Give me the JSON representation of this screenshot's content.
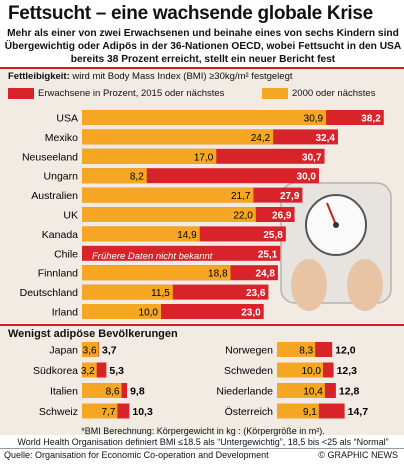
{
  "title": "Fettsucht – eine wachsende globale Krise",
  "subtitle": "Mehr als einer von zwei Erwachsenen und beinahe eines von sechs Kindern sind Übergewichtig oder Adipös in der 36-Nationen OECD, wobei Fettsucht in den USA bereits 38 Prozent erreicht, stellt ein neuer Bericht fest",
  "legend": {
    "heading_bold": "Fettleibigkeit:",
    "heading_rest": "wird mit Body Mass Index (BMI) ≥30kg/m² festgelegt",
    "series_2015_label": "Erwachsene in Prozent, 2015 oder nächstes",
    "series_2000_label": "2000 oder nächstes"
  },
  "colors": {
    "red": "#d8232a",
    "orange": "#f5a623",
    "accent_line": "#cc1f1f",
    "panel": "#f1ebe4"
  },
  "chart_data": [
    {
      "type": "bar",
      "title": "",
      "categories": [
        "USA",
        "Mexiko",
        "Neuseeland",
        "Ungarn",
        "Australien",
        "UK",
        "Kanada",
        "Chile",
        "Finnland",
        "Deutschland",
        "Irland"
      ],
      "series": [
        {
          "name": "Erwachsene in Prozent, 2015 oder nächstes",
          "values": [
            38.2,
            32.4,
            30.7,
            30.0,
            27.9,
            26.9,
            25.8,
            25.1,
            24.8,
            23.6,
            23.0
          ]
        },
        {
          "name": "2000 oder nächstes",
          "values": [
            30.9,
            24.2,
            17.0,
            8.2,
            21.7,
            22.0,
            14.9,
            null,
            18.8,
            11.5,
            10.0
          ]
        }
      ],
      "labels_2015": [
        "38,2",
        "32,4",
        "30,7",
        "30,0",
        "27,9",
        "26,9",
        "25,8",
        "25,1",
        "24,8",
        "23,6",
        "23,0"
      ],
      "labels_2000": [
        "30,9",
        "24,2",
        "17,0",
        "8,2",
        "21,7",
        "22,0",
        "14,9",
        "",
        "18,8",
        "11,5",
        "10,0"
      ],
      "annotation": "Frühere Daten nicht bekannt",
      "xlim": [
        0,
        40
      ]
    },
    {
      "type": "bar",
      "title": "Wenigst adipöse Bevölkerungen",
      "categories": [
        "Japan",
        "Südkorea",
        "Italien",
        "Schweiz",
        "Norwegen",
        "Schweden",
        "Niederlande",
        "Österreich"
      ],
      "series": [
        {
          "name": "Erwachsene in Prozent, 2015 oder nächstes",
          "values": [
            3.7,
            5.3,
            9.8,
            10.3,
            12.0,
            12.3,
            12.8,
            14.7
          ]
        },
        {
          "name": "2000 oder nächstes",
          "values": [
            3.6,
            3.2,
            8.6,
            7.7,
            8.3,
            10.0,
            10.4,
            9.1
          ]
        }
      ],
      "labels_2015": [
        "3,7",
        "5,3",
        "9,8",
        "10,3",
        "12,0",
        "12,3",
        "12,8",
        "14,7"
      ],
      "labels_2000": [
        "3,6",
        "3,2",
        "8,6",
        "7,7",
        "8,3",
        "10,0",
        "10,4",
        "9,1"
      ]
    }
  ],
  "footnotes": {
    "line1": "*BMI Berechnung: Körpergewicht in kg : (Körpergröße in m²).",
    "line2": "World Health Organisation definiert BMI ≤18.5 als “Untergewichtig”, 18,5 bis <25 als “Normal”"
  },
  "source": "Quelle: Organisation for Economic Co-operation and Development",
  "credit": "© GRAPHIC NEWS",
  "watermark": "GRAPHIC NEWS"
}
